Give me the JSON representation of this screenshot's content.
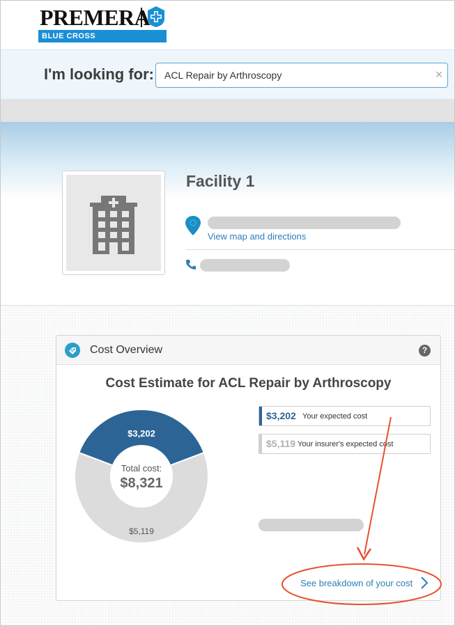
{
  "logo": {
    "wordmark": "PREMERA",
    "tagline": "BLUE CROSS",
    "icon": "blue-cross-shield-icon",
    "colors": {
      "bar": "#1a8fd6",
      "cross": "#1a8fd6"
    }
  },
  "search": {
    "label": "I'm looking for:",
    "value": "ACL Repair by Arthroscopy",
    "clear_glyph": "×"
  },
  "facility": {
    "name": "Facility 1",
    "map_link": "View map and directions",
    "image_icon": "hospital-building-icon",
    "location_icon": "map-pin-icon",
    "phone_icon": "phone-icon"
  },
  "cost_overview": {
    "title": "Cost Overview",
    "help_glyph": "?",
    "estimate_title": "Cost Estimate for ACL Repair by Arthroscopy",
    "total_label": "Total cost:",
    "total_value": "$8,321",
    "breakdown_link": "See breakdown of your cost",
    "legend": [
      {
        "value": "$3,202",
        "label": "Your expected cost",
        "color": "#2c6496"
      },
      {
        "value": "$5,119",
        "label": "Your insurer's expected cost",
        "color": "#bdbdbd"
      }
    ]
  },
  "chart_data": {
    "type": "pie",
    "categories": [
      "Your expected cost",
      "Your insurer's expected cost"
    ],
    "values": [
      3202,
      5119
    ],
    "labels": [
      "$3,202",
      "$5,119"
    ],
    "colors": [
      "#2c6496",
      "#dcdcdc"
    ],
    "title": "Cost Estimate for ACL Repair by Arthroscopy"
  },
  "annotation": {
    "color": "#e8502e"
  }
}
